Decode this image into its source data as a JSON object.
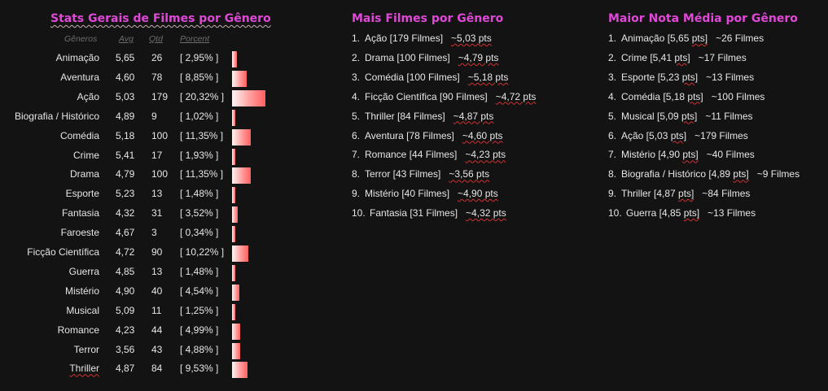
{
  "stats": {
    "title": "Stats Gerais de Filmes por Gênero",
    "headers": {
      "genre": "Gêneros",
      "avg": "Avg",
      "qtd": "Qtd",
      "pct": "Porcent"
    },
    "rows": [
      {
        "name": "Animação",
        "avg": "5,65",
        "qtd": "26",
        "pct": "[ 2,95% ]",
        "pct_value": 2.95
      },
      {
        "name": "Aventura",
        "avg": "4,60",
        "qtd": "78",
        "pct": "[ 8,85% ]",
        "pct_value": 8.85
      },
      {
        "name": "Ação",
        "avg": "5,03",
        "qtd": "179",
        "pct": "[ 20,32% ]",
        "pct_value": 20.32
      },
      {
        "name": "Biografia / Histórico",
        "avg": "4,89",
        "qtd": "9",
        "pct": "[ 1,02% ]",
        "pct_value": 1.02
      },
      {
        "name": "Comédia",
        "avg": "5,18",
        "qtd": "100",
        "pct": "[ 11,35% ]",
        "pct_value": 11.35
      },
      {
        "name": "Crime",
        "avg": "5,41",
        "qtd": "17",
        "pct": "[ 1,93% ]",
        "pct_value": 1.93
      },
      {
        "name": "Drama",
        "avg": "4,79",
        "qtd": "100",
        "pct": "[ 11,35% ]",
        "pct_value": 11.35
      },
      {
        "name": "Esporte",
        "avg": "5,23",
        "qtd": "13",
        "pct": "[ 1,48% ]",
        "pct_value": 1.48
      },
      {
        "name": "Fantasia",
        "avg": "4,32",
        "qtd": "31",
        "pct": "[ 3,52% ]",
        "pct_value": 3.52
      },
      {
        "name": "Faroeste",
        "avg": "4,67",
        "qtd": "3",
        "pct": "[ 0,34% ]",
        "pct_value": 0.34
      },
      {
        "name": "Ficção Científica",
        "avg": "4,72",
        "qtd": "90",
        "pct": "[ 10,22% ]",
        "pct_value": 10.22
      },
      {
        "name": "Guerra",
        "avg": "4,85",
        "qtd": "13",
        "pct": "[ 1,48% ]",
        "pct_value": 1.48
      },
      {
        "name": "Mistério",
        "avg": "4,90",
        "qtd": "40",
        "pct": "[ 4,54% ]",
        "pct_value": 4.54
      },
      {
        "name": "Musical",
        "avg": "5,09",
        "qtd": "11",
        "pct": "[ 1,25% ]",
        "pct_value": 1.25
      },
      {
        "name": "Romance",
        "avg": "4,23",
        "qtd": "44",
        "pct": "[ 4,99% ]",
        "pct_value": 4.99
      },
      {
        "name": "Terror",
        "avg": "3,56",
        "qtd": "43",
        "pct": "[ 4,88% ]",
        "pct_value": 4.88
      },
      {
        "name": "Thriller",
        "avg": "4,87",
        "qtd": "84",
        "pct": "[ 9,53% ]",
        "pct_value": 9.53
      }
    ]
  },
  "most_movies": {
    "title": "Mais Filmes por Gênero",
    "items": [
      {
        "num": "1.",
        "main": "Ação [179 Filmes]",
        "extra": "~5,03 pts"
      },
      {
        "num": "2.",
        "main": "Drama [100 Filmes]",
        "extra": "~4,79 pts"
      },
      {
        "num": "3.",
        "main": "Comédia [100 Filmes]",
        "extra": "~5,18 pts"
      },
      {
        "num": "4.",
        "main": "Ficção Científica [90 Filmes]",
        "extra": "~4,72 pts"
      },
      {
        "num": "5.",
        "main": "Thriller [84 Filmes]",
        "extra": "~4,87 pts"
      },
      {
        "num": "6.",
        "main": "Aventura [78 Filmes]",
        "extra": "~4,60 pts"
      },
      {
        "num": "7.",
        "main": "Romance [44 Filmes]",
        "extra": "~4,23 pts"
      },
      {
        "num": "8.",
        "main": "Terror [43 Filmes]",
        "extra": "~3,56 pts"
      },
      {
        "num": "9.",
        "main": "Mistério [40 Filmes]",
        "extra": "~4,90 pts"
      },
      {
        "num": "10.",
        "main": "Fantasia [31 Filmes]",
        "extra": "~4,32 pts"
      }
    ]
  },
  "best_rating": {
    "title": "Maior Nota Média por Gênero",
    "items": [
      {
        "num": "1.",
        "main": "Animação [5,65 pts]",
        "extra": "~26 Filmes"
      },
      {
        "num": "2.",
        "main": "Crime [5,41 pts]",
        "extra": "~17 Filmes"
      },
      {
        "num": "3.",
        "main": "Esporte [5,23 pts]",
        "extra": "~13 Filmes"
      },
      {
        "num": "4.",
        "main": "Comédia [5,18 pts]",
        "extra": "~100 Filmes"
      },
      {
        "num": "5.",
        "main": "Musical [5,09 pts]",
        "extra": "~11 Filmes"
      },
      {
        "num": "6.",
        "main": "Ação [5,03 pts]",
        "extra": "~179 Filmes"
      },
      {
        "num": "7.",
        "main": "Mistério [4,90 pts]",
        "extra": "~40 Filmes"
      },
      {
        "num": "8.",
        "main": "Biografia / Histórico [4,89 pts]",
        "extra": "~9 Filmes"
      },
      {
        "num": "9.",
        "main": "Thriller [4,87 pts]",
        "extra": "~84 Filmes"
      },
      {
        "num": "10.",
        "main": "Guerra [4,85 pts]",
        "extra": "~13 Filmes"
      }
    ]
  },
  "colors": {
    "title": "#e048d8",
    "background": "#131313",
    "bar": "#ff6060"
  }
}
